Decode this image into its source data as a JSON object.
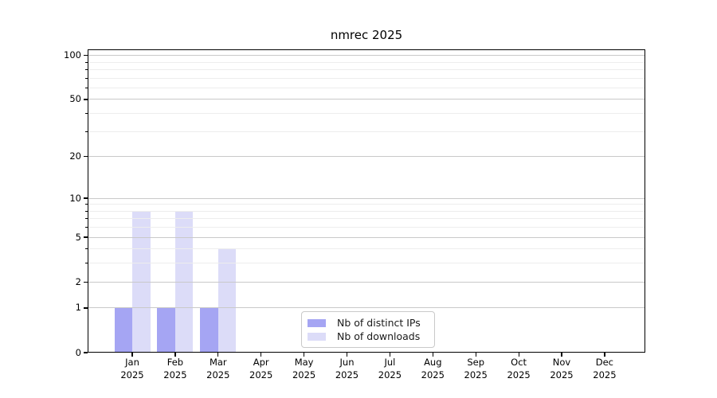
{
  "chart_data": {
    "type": "bar",
    "title": "nmrec 2025",
    "x_year": "2025",
    "categories": [
      "Jan",
      "Feb",
      "Mar",
      "Apr",
      "May",
      "Jun",
      "Jul",
      "Aug",
      "Sep",
      "Oct",
      "Nov",
      "Dec"
    ],
    "series": [
      {
        "name": "Nb of distinct IPs",
        "color": "#a5a5f3",
        "values": [
          1,
          1,
          1,
          0,
          0,
          0,
          0,
          0,
          0,
          0,
          0,
          0
        ]
      },
      {
        "name": "Nb of downloads",
        "color": "#dcdcf8",
        "values": [
          8,
          8,
          4,
          0,
          0,
          0,
          0,
          0,
          0,
          0,
          0,
          0
        ]
      }
    ],
    "yscale": "log10(1+y)",
    "yticks": [
      0,
      1,
      2,
      5,
      10,
      20,
      50,
      100
    ],
    "minor_yticks": [
      3,
      4,
      6,
      7,
      8,
      9,
      30,
      40,
      60,
      70,
      80,
      90
    ],
    "ylim": [
      0,
      110
    ],
    "xlabel": "",
    "ylabel": "",
    "grid": true,
    "legend_position": "lower center"
  },
  "colors": {
    "background": "#ffffff",
    "axis": "#000000",
    "major_grid": "#c9c9c9",
    "minor_grid": "#ededed",
    "legend_border": "#c9c9c9",
    "text": "#000000"
  }
}
